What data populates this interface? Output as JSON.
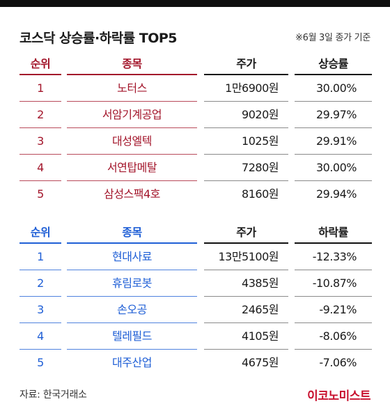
{
  "title": "코스닥 상승률·하락률 TOP5",
  "note": "※6월 3일 종가 기준",
  "gainers": {
    "headers": {
      "rank": "순위",
      "name": "종목",
      "price": "주가",
      "rate": "상승률"
    },
    "rows": [
      {
        "rank": "1",
        "name": "노터스",
        "price": "1만6900원",
        "rate": "30.00%"
      },
      {
        "rank": "2",
        "name": "서암기계공업",
        "price": "9020원",
        "rate": "29.97%"
      },
      {
        "rank": "3",
        "name": "대성엘텍",
        "price": "1025원",
        "rate": "29.91%"
      },
      {
        "rank": "4",
        "name": "서연탑메탈",
        "price": "7280원",
        "rate": "30.00%"
      },
      {
        "rank": "5",
        "name": "삼성스팩4호",
        "price": "8160원",
        "rate": "29.94%"
      }
    ]
  },
  "losers": {
    "headers": {
      "rank": "순위",
      "name": "종목",
      "price": "주가",
      "rate": "하락률"
    },
    "rows": [
      {
        "rank": "1",
        "name": "현대사료",
        "price": "13만5100원",
        "rate": "-12.33%"
      },
      {
        "rank": "2",
        "name": "휴림로봇",
        "price": "4385원",
        "rate": "-10.87%"
      },
      {
        "rank": "3",
        "name": "손오공",
        "price": "2465원",
        "rate": "-9.21%"
      },
      {
        "rank": "4",
        "name": "텔레필드",
        "price": "4105원",
        "rate": "-8.06%"
      },
      {
        "rank": "5",
        "name": "대주산업",
        "price": "4675원",
        "rate": "-7.06%"
      }
    ]
  },
  "source": "자료: 한국거래소",
  "logo": "이코노미스트",
  "colors": {
    "gainers_accent": "#a3162b",
    "losers_accent": "#1f5fd6",
    "logo": "#c8102e"
  }
}
